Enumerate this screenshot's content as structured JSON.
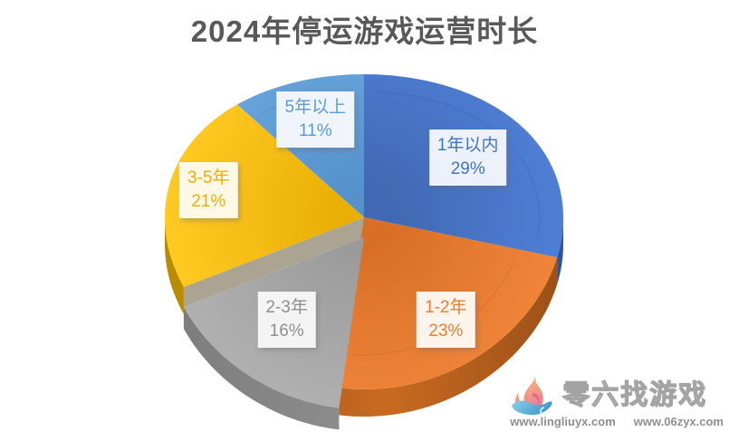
{
  "title": "2024年停运游戏运营时长",
  "chart_data": {
    "type": "pie",
    "style": "3d-pie",
    "title": "2024年停运游戏运营时长",
    "categories": [
      "1年以内",
      "1-2年",
      "2-3年",
      "3-5年",
      "5年以上"
    ],
    "values": [
      29,
      23,
      16,
      21,
      11
    ],
    "unit": "%",
    "start_angle_deg": 0,
    "direction": "clockwise",
    "legend_position": "none",
    "slices": [
      {
        "label": "1年以内",
        "pct": "29%",
        "color": "#4472C4",
        "label_color": "#4472C4",
        "label_bg": "#EDF2FA"
      },
      {
        "label": "1-2年",
        "pct": "23%",
        "color": "#ED7D31",
        "label_color": "#ED7D31",
        "label_bg": "#FDF4EC"
      },
      {
        "label": "2-3年",
        "pct": "16%",
        "color": "#A5A5A5",
        "label_color": "#8F8F8F",
        "label_bg": "#F4F4F4"
      },
      {
        "label": "3-5年",
        "pct": "21%",
        "color": "#FFC000",
        "label_color": "#EFAF00",
        "label_bg": "#FEF8E6"
      },
      {
        "label": "5年以上",
        "pct": "11%",
        "color": "#5B9BD5",
        "label_color": "#5B9BD5",
        "label_bg": "#EFF5FB"
      }
    ]
  },
  "watermark": {
    "brand": "零六找游戏",
    "urls": [
      "www.lingliuyx.com",
      "www.06zyx.com"
    ]
  },
  "colors": {
    "title_text": "#595959",
    "url_text": "#8F8F8F",
    "background": "#FFFFFF",
    "yellow_cut_face": "#ACA493",
    "orange_cut_face": "#C4682B"
  }
}
